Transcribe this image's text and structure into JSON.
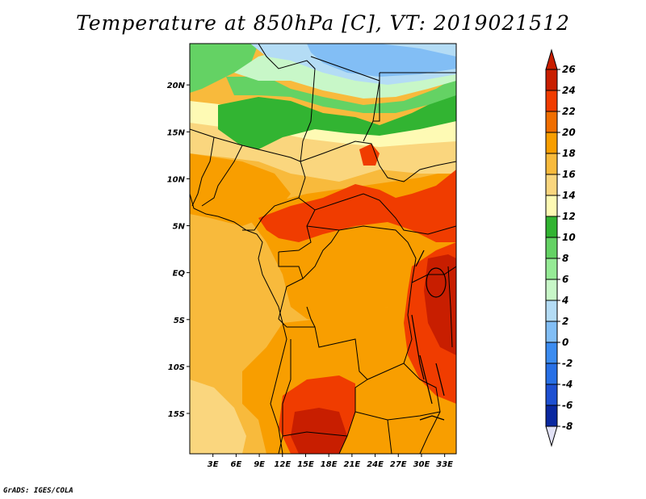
{
  "title": "Temperature at 850hPa [C], VT: 2019021512",
  "credit": "GrADS: IGES/COLA",
  "map": {
    "lon_range": [
      0,
      34.5
    ],
    "lat_range": [
      -19.3,
      24.4
    ],
    "lat_ticks": [
      {
        "value": 20,
        "label": "20N"
      },
      {
        "value": 15,
        "label": "15N"
      },
      {
        "value": 10,
        "label": "10N"
      },
      {
        "value": 5,
        "label": "5N"
      },
      {
        "value": 0,
        "label": "EQ"
      },
      {
        "value": -5,
        "label": "5S"
      },
      {
        "value": -10,
        "label": "10S"
      },
      {
        "value": -15,
        "label": "15S"
      }
    ],
    "lon_ticks": [
      {
        "value": 3,
        "label": "3E"
      },
      {
        "value": 6,
        "label": "6E"
      },
      {
        "value": 9,
        "label": "9E"
      },
      {
        "value": 12,
        "label": "12E"
      },
      {
        "value": 15,
        "label": "15E"
      },
      {
        "value": 18,
        "label": "18E"
      },
      {
        "value": 21,
        "label": "21E"
      },
      {
        "value": 24,
        "label": "24E"
      },
      {
        "value": 27,
        "label": "27E"
      },
      {
        "value": 30,
        "label": "30E"
      },
      {
        "value": 33,
        "label": "33E"
      }
    ]
  },
  "colorbar": {
    "levels": [
      "26",
      "24",
      "22",
      "20",
      "18",
      "16",
      "14",
      "12",
      "10",
      "8",
      "6",
      "4",
      "2",
      "0",
      "-2",
      "-4",
      "-6",
      "-8"
    ],
    "colors": [
      "#c81e00",
      "#f03c00",
      "#f06e00",
      "#f89e00",
      "#f8ba3c",
      "#fad67e",
      "#fefab4",
      "#32b432",
      "#64d264",
      "#96eb96",
      "#c8f7c8",
      "#b4dcf5",
      "#82bef5",
      "#3c8cf0",
      "#2870e6",
      "#1e50d2",
      "#0a28a0",
      "#0a0a78"
    ],
    "bottom_arrow_color": "#e1e1f5",
    "top_arrow_color": "#c81e00"
  },
  "legend_colors": {
    "ocean": "#f8ba3c",
    "border_color": "#000000"
  }
}
